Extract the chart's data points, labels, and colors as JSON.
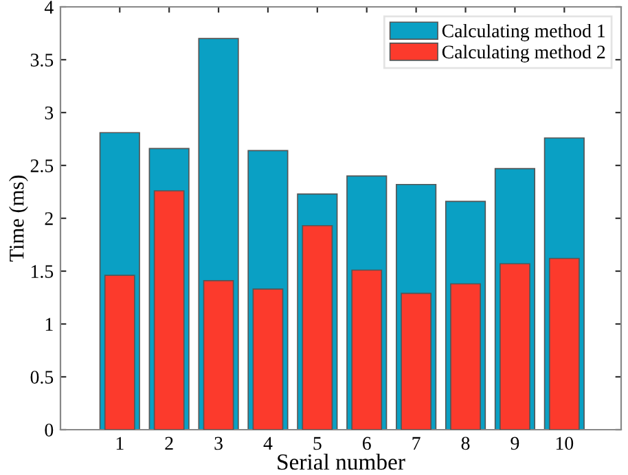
{
  "chart_data": {
    "type": "bar",
    "xlabel": "Serial number",
    "ylabel": "Time (ms)",
    "categories": [
      "1",
      "2",
      "3",
      "4",
      "5",
      "6",
      "7",
      "8",
      "9",
      "10"
    ],
    "series": [
      {
        "name": "Calculating method 1",
        "color": "#0aa0c4",
        "values": [
          2.81,
          2.66,
          3.7,
          2.64,
          2.23,
          2.4,
          2.32,
          2.16,
          2.47,
          2.76
        ]
      },
      {
        "name": "Calculating method 2",
        "color": "#fc3a2c",
        "values": [
          1.46,
          2.26,
          1.41,
          1.33,
          1.93,
          1.51,
          1.29,
          1.38,
          1.57,
          1.62
        ]
      }
    ],
    "ylim": [
      0,
      4
    ],
    "yticks": [
      0,
      0.5,
      1,
      1.5,
      2,
      2.5,
      3,
      3.5,
      4
    ],
    "grid": false,
    "legend": "top right"
  }
}
